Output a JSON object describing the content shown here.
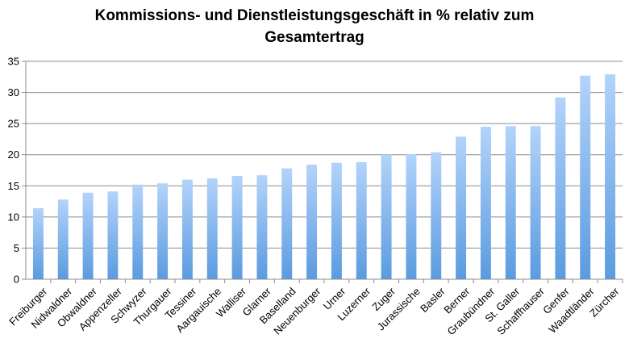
{
  "chart_data": {
    "type": "bar",
    "title": "Kommissions- und Dienstleistungsgeschäft in % relativ zum Gesamtertrag",
    "title_lines": [
      "Kommissions- und Dienstleistungsgeschäft in % relativ zum",
      "Gesamtertrag"
    ],
    "xlabel": "",
    "ylabel": "",
    "ylim": [
      0,
      35
    ],
    "yticks": [
      0,
      5,
      10,
      15,
      20,
      25,
      30,
      35
    ],
    "grid": true,
    "categories": [
      "Freiburger",
      "Nidwaldner",
      "Obwaldner",
      "Appenzeller",
      "Schwyzer",
      "Thurgauer",
      "Tessiner",
      "Aargauische",
      "Walliser",
      "Glarner",
      "Baselland",
      "Neuenburger",
      "Urner",
      "Luzerner",
      "Zuger",
      "Jurassische",
      "Basler",
      "Berner",
      "Graubündner",
      "St. Galler",
      "Schaffhauser",
      "Genfer",
      "Waadtländer",
      "Zürcher"
    ],
    "values": [
      11.4,
      12.8,
      13.9,
      14.1,
      15.2,
      15.4,
      16.0,
      16.2,
      16.6,
      16.7,
      17.8,
      18.4,
      18.7,
      18.8,
      20.0,
      20.1,
      20.4,
      22.9,
      24.5,
      24.6,
      24.6,
      29.2,
      32.7,
      32.9
    ],
    "colors": {
      "bar_top": "#b3d3fa",
      "bar_bottom": "#5a9be0",
      "grid": "#8c8c8c",
      "axis": "#8c8c8c"
    }
  }
}
